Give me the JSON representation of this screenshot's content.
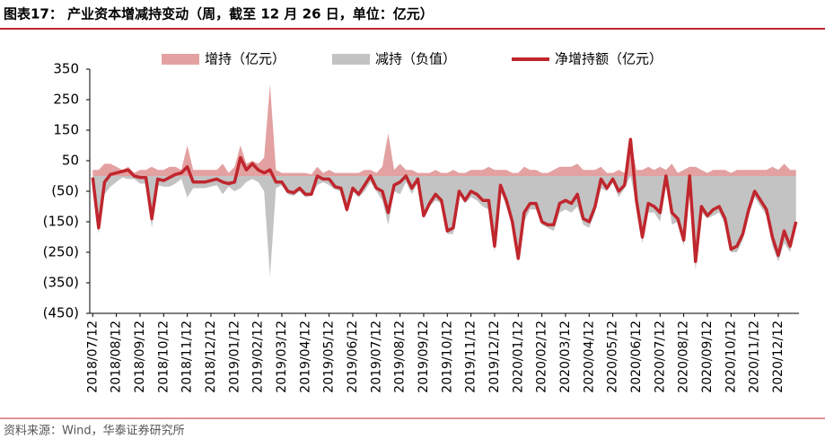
{
  "header": {
    "title": "图表17：  产业资本增减持变动（周，截至 12 月 26 日，单位：亿元）"
  },
  "footer": {
    "source": "资料来源：Wind，华泰证券研究所"
  },
  "chart_data": {
    "type": "area-line",
    "categories": [
      "2018/07/12",
      null,
      null,
      null,
      "2018/08/12",
      null,
      null,
      null,
      "2018/09/12",
      null,
      null,
      null,
      "2018/10/12",
      null,
      null,
      null,
      "2018/11/12",
      null,
      null,
      null,
      "2018/12/12",
      null,
      null,
      null,
      "2019/01/12",
      null,
      null,
      null,
      "2019/02/12",
      null,
      null,
      null,
      "2019/03/12",
      null,
      null,
      null,
      "2019/04/12",
      null,
      null,
      null,
      "2019/05/12",
      null,
      null,
      null,
      "2019/06/12",
      null,
      null,
      null,
      "2019/07/12",
      null,
      null,
      null,
      "2019/08/12",
      null,
      null,
      null,
      "2019/09/12",
      null,
      null,
      null,
      "2019/10/12",
      null,
      null,
      null,
      "2019/11/12",
      null,
      null,
      null,
      "2019/12/12",
      null,
      null,
      null,
      "2020/01/12",
      null,
      null,
      null,
      "2020/02/12",
      null,
      null,
      null,
      "2020/03/12",
      null,
      null,
      null,
      "2020/04/12",
      null,
      null,
      null,
      "2020/05/12",
      null,
      null,
      null,
      "2020/06/12",
      null,
      null,
      null,
      "2020/07/12",
      null,
      null,
      null,
      "2020/08/12",
      null,
      null,
      null,
      "2020/09/12",
      null,
      null,
      null,
      "2020/10/12",
      null,
      null,
      null,
      "2020/11/12",
      null,
      null,
      null,
      "2020/12/12",
      null,
      null,
      null
    ],
    "series": [
      {
        "name": "增持（亿元）",
        "kind": "area",
        "color": "#e3a1a1",
        "values": [
          20,
          20,
          40,
          40,
          30,
          20,
          30,
          10,
          20,
          20,
          30,
          20,
          20,
          30,
          30,
          20,
          100,
          20,
          20,
          20,
          20,
          20,
          40,
          10,
          30,
          100,
          40,
          50,
          40,
          60,
          300,
          20,
          10,
          10,
          10,
          10,
          10,
          5,
          30,
          10,
          20,
          10,
          10,
          10,
          10,
          10,
          20,
          20,
          10,
          30,
          140,
          20,
          40,
          20,
          20,
          10,
          10,
          10,
          20,
          10,
          10,
          20,
          10,
          10,
          20,
          20,
          20,
          30,
          20,
          20,
          20,
          10,
          10,
          30,
          20,
          20,
          10,
          10,
          20,
          30,
          30,
          30,
          40,
          20,
          20,
          20,
          30,
          10,
          10,
          20,
          10,
          120,
          20,
          20,
          30,
          20,
          30,
          20,
          40,
          10,
          20,
          30,
          30,
          20,
          10,
          20,
          20,
          20,
          10,
          20,
          20,
          20,
          20,
          20,
          20,
          30,
          20,
          40,
          20,
          20
        ]
      },
      {
        "name": "减持（负值）",
        "kind": "area",
        "color": "#c3c3c3",
        "values": [
          -25,
          -190,
          -60,
          -35,
          -20,
          -5,
          -10,
          -10,
          -25,
          -25,
          -170,
          -30,
          -35,
          -35,
          -25,
          -10,
          -70,
          -40,
          -40,
          -40,
          -35,
          -30,
          -60,
          -35,
          -50,
          -40,
          -20,
          -10,
          -20,
          -50,
          -330,
          -40,
          -30,
          -60,
          -65,
          -50,
          -70,
          -65,
          -30,
          -20,
          -30,
          -45,
          -50,
          -120,
          -50,
          -70,
          -50,
          -20,
          -50,
          -80,
          -160,
          -50,
          -60,
          -20,
          -60,
          -20,
          -140,
          -100,
          -80,
          -90,
          -190,
          -190,
          -60,
          -90,
          -70,
          -80,
          -100,
          -110,
          -250,
          -50,
          -100,
          -160,
          -280,
          -150,
          -110,
          -110,
          -160,
          -170,
          -180,
          -120,
          -110,
          -120,
          -100,
          -160,
          -170,
          -120,
          -40,
          -50,
          -20,
          -70,
          -40,
          0,
          -100,
          -220,
          -120,
          -120,
          -150,
          -20,
          -160,
          -150,
          -230,
          -30,
          -310,
          -120,
          -140,
          -130,
          -120,
          -160,
          -250,
          -250,
          -210,
          -130,
          -70,
          -100,
          -130,
          -230,
          -280,
          -220,
          -250,
          -170
        ]
      },
      {
        "name": "净增持额（亿元）",
        "kind": "line",
        "color": "#c0262d",
        "values": [
          -5,
          -170,
          -20,
          5,
          10,
          15,
          20,
          0,
          -5,
          -5,
          -140,
          -10,
          -15,
          -5,
          5,
          10,
          30,
          -20,
          -20,
          -20,
          -15,
          -10,
          -20,
          -25,
          -20,
          60,
          20,
          40,
          20,
          10,
          20,
          -20,
          -20,
          -50,
          -55,
          -40,
          -60,
          -60,
          0,
          -10,
          -10,
          -35,
          -40,
          -110,
          -40,
          -60,
          -30,
          0,
          -40,
          -50,
          -120,
          -30,
          -20,
          0,
          -40,
          -10,
          -130,
          -90,
          -60,
          -80,
          -180,
          -170,
          -50,
          -80,
          -50,
          -60,
          -80,
          -80,
          -230,
          -30,
          -80,
          -150,
          -270,
          -120,
          -90,
          -90,
          -150,
          -160,
          -160,
          -90,
          -80,
          -90,
          -60,
          -140,
          -150,
          -100,
          -10,
          -40,
          -10,
          -50,
          -30,
          120,
          -80,
          -200,
          -90,
          -100,
          -120,
          0,
          -120,
          -140,
          -210,
          0,
          -280,
          -100,
          -130,
          -110,
          -100,
          -140,
          -240,
          -230,
          -190,
          -110,
          -50,
          -80,
          -110,
          -200,
          -260,
          -180,
          -230,
          -150
        ]
      }
    ],
    "ylim": [
      -450,
      350
    ],
    "yticks": [
      {
        "value": -450,
        "label": "(450)"
      },
      {
        "value": -350,
        "label": "(350)"
      },
      {
        "value": -250,
        "label": "(250)"
      },
      {
        "value": -150,
        "label": "(150)"
      },
      {
        "value": -50,
        "label": "(50)"
      },
      50,
      150,
      250,
      350
    ],
    "legend": "top"
  }
}
